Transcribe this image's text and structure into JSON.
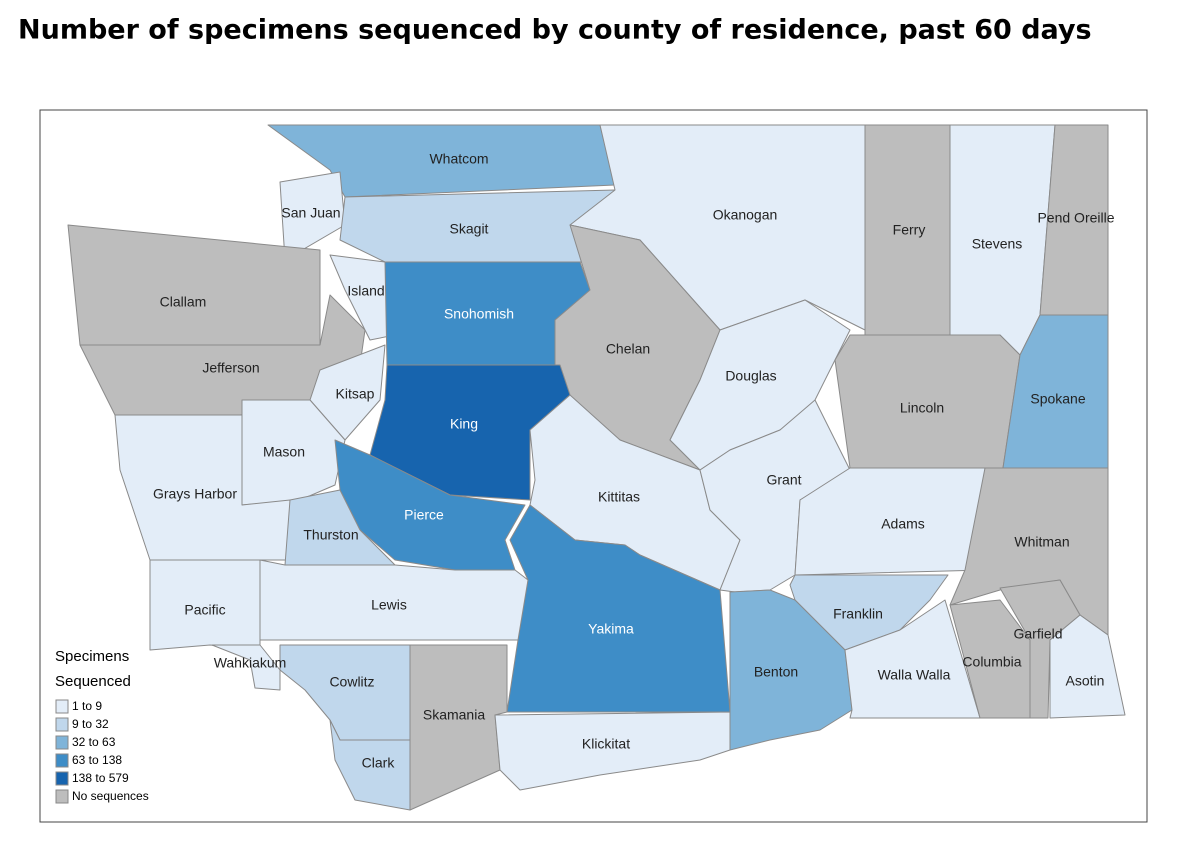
{
  "title": "Number of specimens sequenced by county of residence, past 60 days",
  "map": {
    "counties": [
      {
        "name": "Whatcom",
        "color": "#7fb4d9"
      },
      {
        "name": "San Juan",
        "color": "#e3edf8"
      },
      {
        "name": "Skagit",
        "color": "#c0d7ec"
      },
      {
        "name": "Okanogan",
        "color": "#e3edf8"
      },
      {
        "name": "Ferry",
        "color": "#bdbdbd"
      },
      {
        "name": "Stevens",
        "color": "#e3edf8"
      },
      {
        "name": "Pend Oreille",
        "color": "#bdbdbd"
      },
      {
        "name": "Clallam",
        "color": "#bdbdbd"
      },
      {
        "name": "Jefferson",
        "color": "#bdbdbd"
      },
      {
        "name": "Island",
        "color": "#e3edf8"
      },
      {
        "name": "Snohomish",
        "color": "#3e8dc7"
      },
      {
        "name": "Chelan",
        "color": "#bdbdbd"
      },
      {
        "name": "Douglas",
        "color": "#e3edf8"
      },
      {
        "name": "Kitsap",
        "color": "#e3edf8"
      },
      {
        "name": "King",
        "color": "#1764ae"
      },
      {
        "name": "Lincoln",
        "color": "#bdbdbd"
      },
      {
        "name": "Spokane",
        "color": "#7fb4d9"
      },
      {
        "name": "Mason",
        "color": "#e3edf8"
      },
      {
        "name": "Grays Harbor",
        "color": "#e3edf8"
      },
      {
        "name": "Pierce",
        "color": "#3e8dc7"
      },
      {
        "name": "Thurston",
        "color": "#c0d7ec"
      },
      {
        "name": "Kittitas",
        "color": "#e3edf8"
      },
      {
        "name": "Grant",
        "color": "#e3edf8"
      },
      {
        "name": "Adams",
        "color": "#e3edf8"
      },
      {
        "name": "Whitman",
        "color": "#bdbdbd"
      },
      {
        "name": "Pacific",
        "color": "#e3edf8"
      },
      {
        "name": "Lewis",
        "color": "#e3edf8"
      },
      {
        "name": "Yakima",
        "color": "#3e8dc7"
      },
      {
        "name": "Franklin",
        "color": "#c0d7ec"
      },
      {
        "name": "Benton",
        "color": "#7fb4d9"
      },
      {
        "name": "Wahkiakum",
        "color": "#e3edf8"
      },
      {
        "name": "Cowlitz",
        "color": "#c0d7ec"
      },
      {
        "name": "Skamania",
        "color": "#bdbdbd"
      },
      {
        "name": "Klickitat",
        "color": "#e3edf8"
      },
      {
        "name": "Clark",
        "color": "#c0d7ec"
      },
      {
        "name": "Walla Walla",
        "color": "#e3edf8"
      },
      {
        "name": "Columbia",
        "color": "#bdbdbd"
      },
      {
        "name": "Garfield",
        "color": "#bdbdbd"
      },
      {
        "name": "Asotin",
        "color": "#e3edf8"
      }
    ],
    "legend": {
      "title_lines": [
        "Specimens",
        "Sequenced"
      ],
      "items": [
        {
          "label": "1 to 9",
          "color": "#e3edf8"
        },
        {
          "label": "9 to 32",
          "color": "#c0d7ec"
        },
        {
          "label": "32 to 63",
          "color": "#7fb4d9"
        },
        {
          "label": "63 to 138",
          "color": "#3e8dc7"
        },
        {
          "label": "138 to 579",
          "color": "#1764ae"
        },
        {
          "label": "No sequences",
          "color": "#bdbdbd"
        }
      ]
    }
  }
}
